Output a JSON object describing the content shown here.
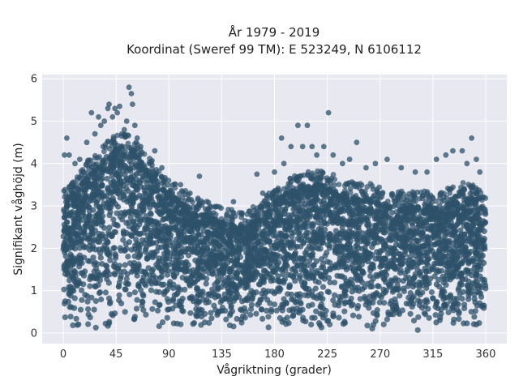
{
  "chart_data": {
    "type": "scatter",
    "title_lines": [
      "År 1979 - 2019",
      "Koordinat (Sweref 99 TM): E 523249, N 6106112"
    ],
    "xlabel": "Vågriktning (grader)",
    "ylabel": "Signifikant våghöjd (m)",
    "xlim": [
      -18,
      378
    ],
    "ylim": [
      -0.25,
      6.1
    ],
    "xticks": [
      0,
      45,
      90,
      135,
      180,
      225,
      270,
      315,
      360
    ],
    "yticks": [
      0,
      1,
      2,
      3,
      4,
      5,
      6
    ],
    "grid": true,
    "legend": "none",
    "colors": {
      "marker": "#2e5169",
      "background": "#e8e8f0",
      "grid": "#ffffff"
    },
    "envelope": {
      "direction": [
        0,
        10,
        20,
        30,
        40,
        50,
        60,
        70,
        80,
        90,
        100,
        110,
        120,
        130,
        140,
        150,
        160,
        170,
        180,
        190,
        200,
        210,
        220,
        230,
        240,
        250,
        260,
        270,
        280,
        290,
        300,
        310,
        320,
        330,
        340,
        350,
        360
      ],
      "upper_height": [
        3.0,
        3.3,
        3.7,
        4.0,
        4.3,
        4.4,
        4.3,
        3.9,
        3.6,
        3.3,
        3.1,
        2.9,
        2.8,
        2.7,
        2.6,
        2.5,
        2.6,
        2.8,
        3.1,
        3.3,
        3.4,
        3.5,
        3.5,
        3.4,
        3.3,
        3.2,
        3.2,
        3.1,
        3.0,
        3.0,
        3.0,
        3.0,
        3.0,
        3.1,
        3.2,
        3.2,
        2.9
      ],
      "lower_height": 0.05
    },
    "outliers": [
      {
        "x": 1,
        "y": 4.2
      },
      {
        "x": 3,
        "y": 4.6
      },
      {
        "x": 5,
        "y": 4.2
      },
      {
        "x": 10,
        "y": 4.0
      },
      {
        "x": 14,
        "y": 4.1
      },
      {
        "x": 20,
        "y": 4.5
      },
      {
        "x": 24,
        "y": 5.2
      },
      {
        "x": 27,
        "y": 4.7
      },
      {
        "x": 30,
        "y": 5.1
      },
      {
        "x": 32,
        "y": 4.9
      },
      {
        "x": 35,
        "y": 5.0
      },
      {
        "x": 38,
        "y": 5.3
      },
      {
        "x": 39,
        "y": 5.4
      },
      {
        "x": 42,
        "y": 5.1
      },
      {
        "x": 44,
        "y": 5.3
      },
      {
        "x": 46,
        "y": 5.2
      },
      {
        "x": 48,
        "y": 5.35
      },
      {
        "x": 52,
        "y": 4.8
      },
      {
        "x": 54,
        "y": 5.0
      },
      {
        "x": 56,
        "y": 5.8
      },
      {
        "x": 58,
        "y": 5.65
      },
      {
        "x": 59,
        "y": 5.4
      },
      {
        "x": 61,
        "y": 4.9
      },
      {
        "x": 63,
        "y": 4.6
      },
      {
        "x": 66,
        "y": 4.4
      },
      {
        "x": 78,
        "y": 4.3
      },
      {
        "x": 84,
        "y": 3.9
      },
      {
        "x": 100,
        "y": 3.5
      },
      {
        "x": 108,
        "y": 3.3
      },
      {
        "x": 116,
        "y": 3.7
      },
      {
        "x": 125,
        "y": 3.0
      },
      {
        "x": 145,
        "y": 3.1
      },
      {
        "x": 165,
        "y": 3.75
      },
      {
        "x": 170,
        "y": 3.3
      },
      {
        "x": 180,
        "y": 3.8
      },
      {
        "x": 186,
        "y": 4.6
      },
      {
        "x": 188,
        "y": 4.0
      },
      {
        "x": 194,
        "y": 4.4
      },
      {
        "x": 200,
        "y": 4.9
      },
      {
        "x": 204,
        "y": 4.4
      },
      {
        "x": 208,
        "y": 4.9
      },
      {
        "x": 212,
        "y": 4.4
      },
      {
        "x": 216,
        "y": 4.2
      },
      {
        "x": 222,
        "y": 4.4
      },
      {
        "x": 226,
        "y": 5.2
      },
      {
        "x": 230,
        "y": 4.2
      },
      {
        "x": 238,
        "y": 4.0
      },
      {
        "x": 244,
        "y": 4.1
      },
      {
        "x": 250,
        "y": 4.5
      },
      {
        "x": 258,
        "y": 3.9
      },
      {
        "x": 266,
        "y": 4.0
      },
      {
        "x": 276,
        "y": 4.1
      },
      {
        "x": 288,
        "y": 3.9
      },
      {
        "x": 300,
        "y": 3.8
      },
      {
        "x": 310,
        "y": 3.8
      },
      {
        "x": 318,
        "y": 4.1
      },
      {
        "x": 326,
        "y": 4.2
      },
      {
        "x": 332,
        "y": 4.3
      },
      {
        "x": 340,
        "y": 4.3
      },
      {
        "x": 344,
        "y": 4.0
      },
      {
        "x": 348,
        "y": 4.6
      },
      {
        "x": 352,
        "y": 4.1
      },
      {
        "x": 355,
        "y": 3.8
      }
    ]
  }
}
